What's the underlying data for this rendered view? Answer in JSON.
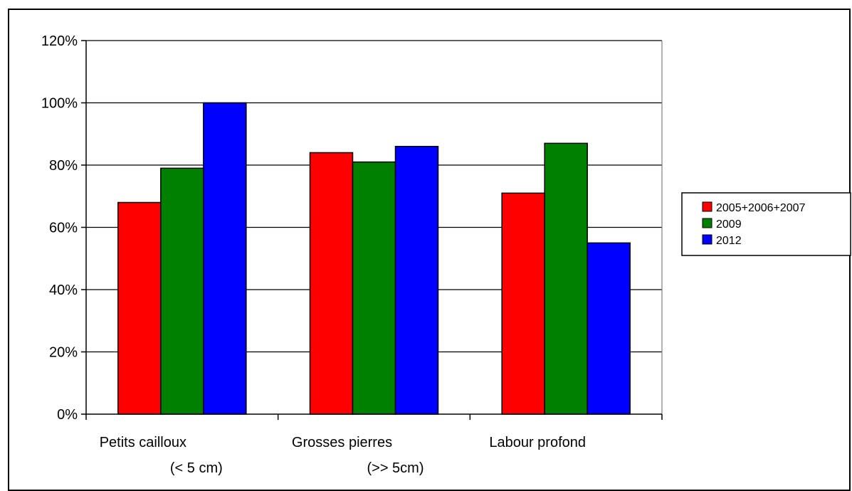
{
  "chart_data": {
    "type": "bar",
    "title": "",
    "xlabel": "",
    "ylabel": "",
    "categories": [
      [
        "Petits cailloux",
        "(< 5 cm)"
      ],
      [
        "Grosses pierres",
        "(>> 5cm)"
      ],
      [
        "Labour profond",
        ""
      ]
    ],
    "series": [
      {
        "name": "2005+2006+2007",
        "color": "#ff0000",
        "values": [
          68,
          84,
          71
        ]
      },
      {
        "name": "2009",
        "color": "#008000",
        "values": [
          79,
          81,
          87
        ]
      },
      {
        "name": "2012",
        "color": "#0000ff",
        "values": [
          100,
          86,
          55
        ]
      }
    ],
    "ylim": [
      0,
      120
    ],
    "yticks": [
      0,
      20,
      40,
      60,
      80,
      100,
      120
    ],
    "ytick_labels": [
      "0%",
      "20%",
      "40%",
      "60%",
      "80%",
      "100%",
      "120%"
    ],
    "grid": true,
    "legend_position": "right"
  }
}
